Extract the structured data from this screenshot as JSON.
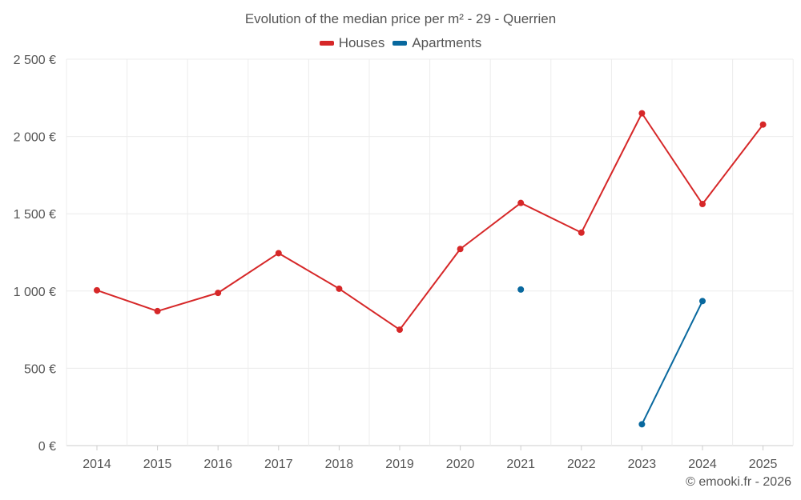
{
  "chart_data": {
    "type": "line",
    "title": "Evolution of the median price per m² - 29 - Querrien",
    "categories": [
      "2014",
      "2015",
      "2016",
      "2017",
      "2018",
      "2019",
      "2020",
      "2021",
      "2022",
      "2023",
      "2024",
      "2025"
    ],
    "y_ticks": [
      0,
      500,
      1000,
      1500,
      2000,
      2500
    ],
    "y_tick_labels": [
      "0 €",
      "500 €",
      "1 000 €",
      "1 500 €",
      "2 000 €",
      "2 500 €"
    ],
    "ylim": [
      0,
      2500
    ],
    "grid": true,
    "legend_position": "top-center",
    "series": [
      {
        "name": "Houses",
        "color": "#d62728",
        "values": [
          1005,
          870,
          988,
          1245,
          1015,
          750,
          1272,
          1570,
          1378,
          2150,
          1563,
          2077
        ]
      },
      {
        "name": "Apartments",
        "color": "#08689e",
        "values": [
          null,
          null,
          null,
          null,
          null,
          null,
          null,
          1010,
          null,
          138,
          935,
          null
        ]
      }
    ]
  },
  "credit": "© emooki.fr - 2026"
}
